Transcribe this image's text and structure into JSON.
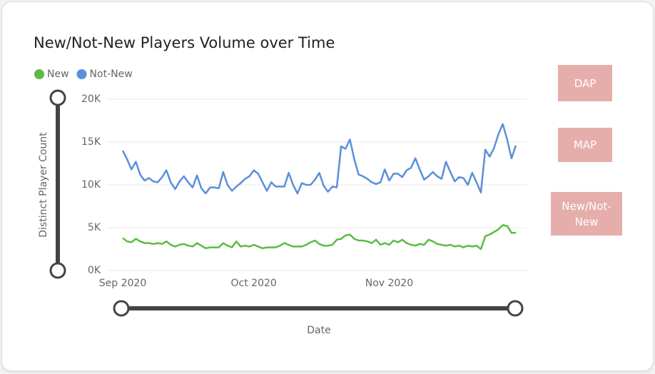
{
  "chart_data": {
    "type": "line",
    "title": "New/Not-New Players Volume over Time",
    "x_label": "Date",
    "y_label": "Distinct Player Count",
    "categories": [
      "Sep 2020",
      null,
      null,
      null,
      null,
      null,
      null,
      null,
      null,
      null,
      null,
      null,
      null,
      null,
      null,
      null,
      null,
      null,
      null,
      null,
      null,
      null,
      null,
      null,
      null,
      null,
      null,
      null,
      null,
      null,
      "Oct 2020",
      null,
      null,
      null,
      null,
      null,
      null,
      null,
      null,
      null,
      null,
      null,
      null,
      null,
      null,
      null,
      null,
      null,
      null,
      null,
      null,
      null,
      null,
      null,
      null,
      null,
      null,
      null,
      null,
      null,
      null,
      "Nov 2020",
      null,
      null,
      null,
      null,
      null,
      null,
      null,
      null,
      null,
      null,
      null,
      null,
      null,
      null,
      null,
      null,
      null,
      null,
      null,
      null,
      null,
      null,
      null,
      null,
      null,
      null,
      null,
      null,
      null
    ],
    "series": [
      {
        "name": "New",
        "color": "#5bbb45",
        "values": [
          3800,
          3400,
          3300,
          3700,
          3400,
          3200,
          3200,
          3100,
          3200,
          3100,
          3400,
          3000,
          2800,
          3000,
          3100,
          2900,
          2800,
          3200,
          2900,
          2600,
          2700,
          2700,
          2700,
          3200,
          2900,
          2700,
          3400,
          2800,
          2900,
          2800,
          3000,
          2800,
          2600,
          2700,
          2700,
          2700,
          2900,
          3200,
          3000,
          2800,
          2800,
          2800,
          3000,
          3300,
          3500,
          3100,
          2900,
          2900,
          3000,
          3600,
          3700,
          4100,
          4200,
          3700,
          3500,
          3500,
          3400,
          3200,
          3600,
          3000,
          3200,
          3000,
          3500,
          3300,
          3600,
          3200,
          3000,
          2900,
          3100,
          3000,
          3600,
          3400,
          3100,
          3000,
          2900,
          3000,
          2800,
          2900,
          2700,
          2900,
          2800,
          2900,
          2500,
          4000,
          4200,
          4500,
          4800,
          5300,
          5200,
          4400,
          4400
        ]
      },
      {
        "name": "Not-New",
        "color": "#5b8fd9",
        "values": [
          14000,
          13000,
          11800,
          12700,
          11200,
          10500,
          10800,
          10400,
          10300,
          10900,
          11700,
          10300,
          9500,
          10400,
          11000,
          10300,
          9700,
          11100,
          9600,
          9000,
          9700,
          9700,
          9600,
          11500,
          10000,
          9300,
          9800,
          10200,
          10700,
          11000,
          11700,
          11300,
          10300,
          9300,
          10300,
          9800,
          9800,
          9800,
          11400,
          10000,
          9000,
          10200,
          10000,
          10000,
          10600,
          11400,
          9900,
          9200,
          9800,
          9700,
          14500,
          14200,
          15300,
          13000,
          11200,
          11000,
          10700,
          10300,
          10100,
          10300,
          11800,
          10500,
          11300,
          11300,
          10900,
          11700,
          12000,
          13100,
          11800,
          10600,
          11000,
          11500,
          11000,
          10700,
          12700,
          11500,
          10400,
          10900,
          10800,
          10000,
          11400,
          10300,
          9100,
          14100,
          13300,
          14300,
          15900,
          17100,
          15300,
          13100,
          14600
        ]
      }
    ],
    "ylim": [
      0,
      20000
    ],
    "yticks": [
      {
        "value": 0,
        "label": "0K"
      },
      {
        "value": 5000,
        "label": "5K"
      },
      {
        "value": 10000,
        "label": "10K"
      },
      {
        "value": 15000,
        "label": "15K"
      },
      {
        "value": 20000,
        "label": "20K"
      }
    ],
    "grid": true,
    "legend": "top-left",
    "buttons": [
      "DAP",
      "MAP",
      "New/Not-New"
    ]
  }
}
